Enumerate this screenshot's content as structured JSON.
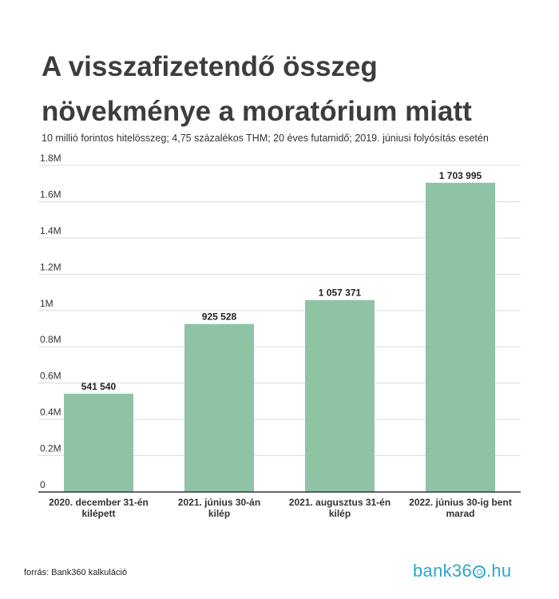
{
  "header": {
    "title": "A visszafizetendő összeg növekménye a moratórium miatt",
    "subtitle": "10 millió forintos hitelösszeg; 4,75 százalékos THM; 20 éves futamidő; 2019. júniusi folyósítás esetén"
  },
  "footer": {
    "source": "forrás: Bank360 kalkuláció",
    "logo_part1": "bank36",
    "logo_part2": ".hu"
  },
  "chart_data": {
    "type": "bar",
    "title": "A visszafizetendő összeg növekménye a moratórium miatt",
    "categories": [
      [
        "2020. december 31-én",
        "kilépett"
      ],
      [
        "2021. június 30-án",
        "kilép"
      ],
      [
        "2021. augusztus 31-én",
        "kilép"
      ],
      [
        "2022. június 30-ig bent",
        "marad"
      ]
    ],
    "values": [
      541540,
      925528,
      1057371,
      1703995
    ],
    "value_labels": [
      "541 540",
      "925 528",
      "1 057 371",
      "1 703 995"
    ],
    "ylim": [
      0,
      1800000
    ],
    "yticks": [
      0,
      200000,
      400000,
      600000,
      800000,
      1000000,
      1200000,
      1400000,
      1600000,
      1800000
    ],
    "ytick_labels": [
      "0",
      "0.2M",
      "0.4M",
      "0.6M",
      "0.8M",
      "1M",
      "1.2M",
      "1.4M",
      "1.6M",
      "1.8M"
    ],
    "grid": true,
    "bar_color": "#8ec3a6"
  }
}
